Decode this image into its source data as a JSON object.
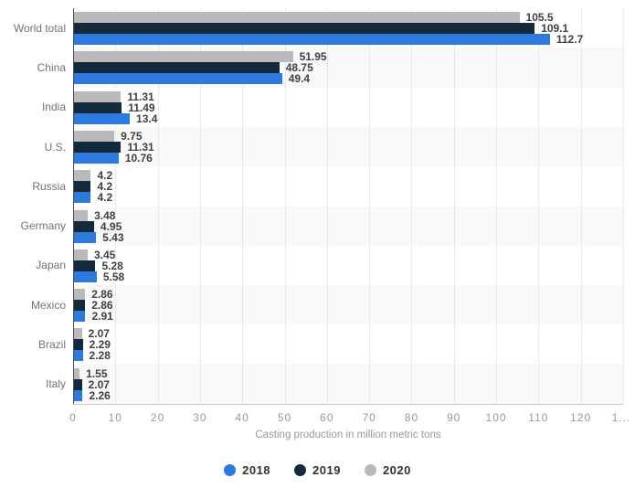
{
  "chart_data": {
    "type": "bar",
    "orientation": "horizontal",
    "title": "",
    "xlabel": "Casting production in million metric tons",
    "categories": [
      "World total",
      "China",
      "India",
      "U.S.",
      "Russia",
      "Germany",
      "Japan",
      "Mexico",
      "Brazil",
      "Italy"
    ],
    "series": [
      {
        "name": "2018",
        "color": "#2d79dd",
        "values": [
          112.7,
          49.4,
          13.4,
          10.76,
          4.2,
          5.43,
          5.58,
          2.91,
          2.28,
          2.26
        ]
      },
      {
        "name": "2019",
        "color": "#15293d",
        "values": [
          109.1,
          48.75,
          11.49,
          11.31,
          4.2,
          4.95,
          5.28,
          2.86,
          2.29,
          2.07
        ]
      },
      {
        "name": "2020",
        "color": "#bababa",
        "values": [
          105.5,
          51.95,
          11.31,
          9.75,
          4.2,
          3.48,
          3.45,
          2.86,
          2.07,
          1.55
        ]
      }
    ],
    "bar_order_top_to_bottom": [
      "2020",
      "2019",
      "2018"
    ],
    "xlim": [
      0,
      130
    ],
    "x_tick_labels": [
      "0",
      "10",
      "20",
      "30",
      "40",
      "50",
      "60",
      "70",
      "80",
      "90",
      "100",
      "110",
      "120",
      "1..."
    ],
    "grid": "vertical-dotted",
    "legend_position": "bottom-center",
    "value_labels": "right-of-bar-bold",
    "row_stripe_color": "#f9f9f9",
    "value_label_color": "#404040",
    "category_label_color": "#737373",
    "tick_label_color": "#999999",
    "axis_title_color": "#999999"
  }
}
